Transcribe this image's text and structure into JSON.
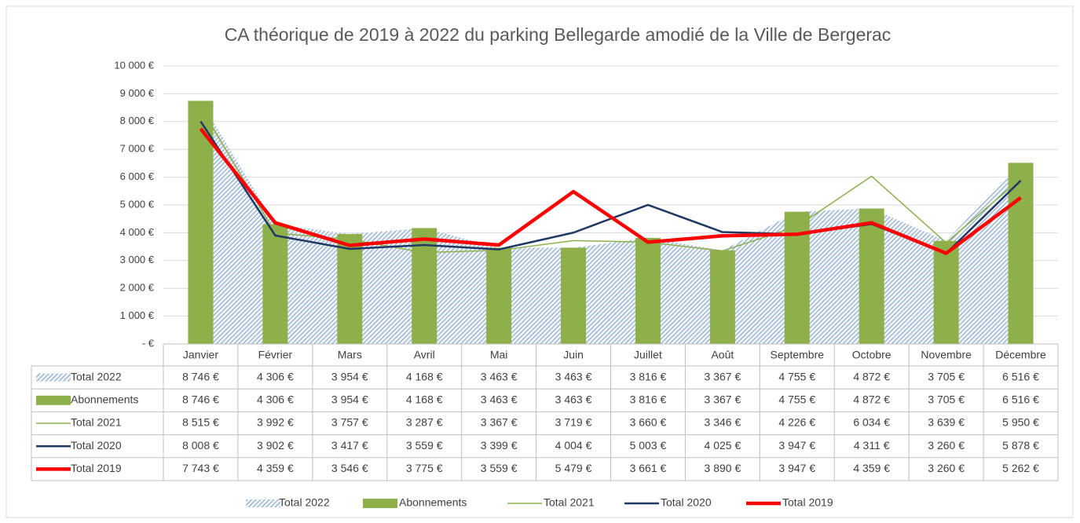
{
  "chart_data": {
    "type": "combo",
    "title": "CA théorique de 2019 à 2022 du parking Bellegarde amodié de la Ville de Bergerac",
    "categories": [
      "Janvier",
      "Février",
      "Mars",
      "Avril",
      "Mai",
      "Juin",
      "Juillet",
      "Août",
      "Septembre",
      "Octobre",
      "Novembre",
      "Décembre"
    ],
    "ylim": [
      0,
      10000
    ],
    "yticks": [
      {
        "value": 0,
        "label": "-   €"
      },
      {
        "value": 1000,
        "label": "1 000 €"
      },
      {
        "value": 2000,
        "label": "2 000 €"
      },
      {
        "value": 3000,
        "label": "3 000 €"
      },
      {
        "value": 4000,
        "label": "4 000 €"
      },
      {
        "value": 5000,
        "label": "5 000 €"
      },
      {
        "value": 6000,
        "label": "6 000 €"
      },
      {
        "value": 7000,
        "label": "7 000 €"
      },
      {
        "value": 8000,
        "label": "8 000 €"
      },
      {
        "value": 9000,
        "label": "9 000 €"
      },
      {
        "value": 10000,
        "label": "10 000 €"
      }
    ],
    "grid": true,
    "legend": "bottom",
    "series": [
      {
        "name": "Total 2022",
        "type": "area",
        "color": "#5b7fae",
        "values": [
          8746,
          4306,
          3954,
          4168,
          3463,
          3463,
          3816,
          3367,
          4755,
          4872,
          3705,
          6516
        ],
        "value_labels": [
          "8 746 €",
          "4 306 €",
          "3 954 €",
          "4 168 €",
          "3 463 €",
          "3 463 €",
          "3 816 €",
          "3 367 €",
          "4 755 €",
          "4 872 €",
          "3 705 €",
          "6 516 €"
        ]
      },
      {
        "name": "Abonnements",
        "type": "bar",
        "color": "#8db04a",
        "values": [
          8746,
          4306,
          3954,
          4168,
          3463,
          3463,
          3816,
          3367,
          4755,
          4872,
          3705,
          6516
        ],
        "value_labels": [
          "8 746 €",
          "4 306 €",
          "3 954 €",
          "4 168 €",
          "3 463 €",
          "3 463 €",
          "3 816 €",
          "3 367 €",
          "4 755 €",
          "4 872 €",
          "3 705 €",
          "6 516 €"
        ]
      },
      {
        "name": "Total 2021",
        "type": "line",
        "color": "#8db04a",
        "width": 1.5,
        "values": [
          8515,
          3992,
          3757,
          3287,
          3367,
          3719,
          3660,
          3346,
          4226,
          6034,
          3639,
          5950
        ],
        "value_labels": [
          "8 515 €",
          "3 992 €",
          "3 757 €",
          "3 287 €",
          "3 367 €",
          "3 719 €",
          "3 660 €",
          "3 346 €",
          "4 226 €",
          "6 034 €",
          "3 639 €",
          "5 950 €"
        ]
      },
      {
        "name": "Total 2020",
        "type": "line",
        "color": "#1f3864",
        "width": 2.5,
        "values": [
          8008,
          3902,
          3417,
          3559,
          3399,
          4004,
          5003,
          4025,
          3947,
          4311,
          3260,
          5878
        ],
        "value_labels": [
          "8 008 €",
          "3 902 €",
          "3 417 €",
          "3 559 €",
          "3 399 €",
          "4 004 €",
          "5 003 €",
          "4 025 €",
          "3 947 €",
          "4 311 €",
          "3 260 €",
          "5 878 €"
        ]
      },
      {
        "name": "Total 2019",
        "type": "line",
        "color": "#ff0000",
        "width": 4.5,
        "values": [
          7743,
          4359,
          3546,
          3775,
          3559,
          5479,
          3661,
          3890,
          3947,
          4359,
          3260,
          5262
        ],
        "value_labels": [
          "7 743 €",
          "4 359 €",
          "3 546 €",
          "3 775 €",
          "3 559 €",
          "5 479 €",
          "3 661 €",
          "3 890 €",
          "3 947 €",
          "4 359 €",
          "3 260 €",
          "5 262 €"
        ]
      }
    ]
  }
}
